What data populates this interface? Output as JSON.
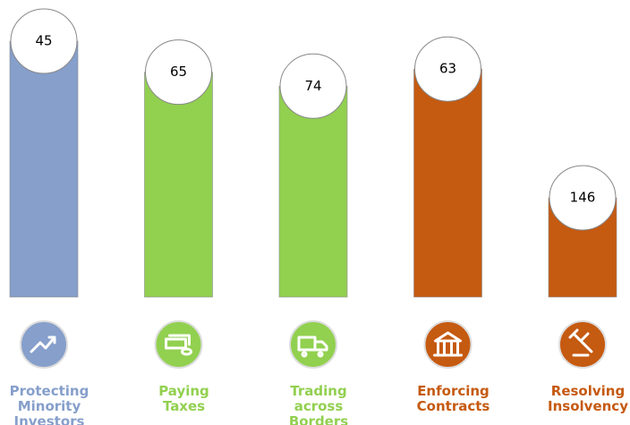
{
  "chart_data": {
    "type": "bar",
    "categories": [
      "Protecting Minority Investors",
      "Paying Taxes",
      "Trading across Borders",
      "Enforcing Contracts",
      "Resolving Insolvency"
    ],
    "values": [
      45,
      65,
      74,
      63,
      146
    ],
    "colors": [
      "#869fcb",
      "#92d050",
      "#92d050",
      "#c55a11",
      "#c55a11"
    ],
    "ylim": [
      210,
      0
    ]
  }
}
